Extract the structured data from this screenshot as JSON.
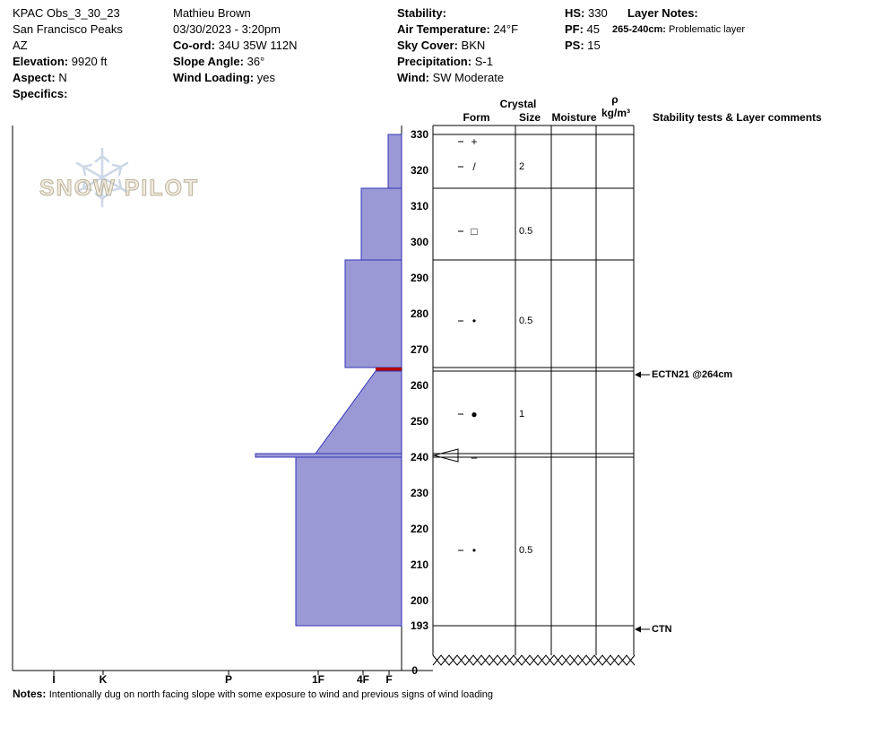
{
  "header": {
    "pit": {
      "title": "KPAC Obs_3_30_23",
      "location": "San Francisco Peaks",
      "region": "AZ",
      "elevation_label": "Elevation:",
      "elevation_value": "9920 ft",
      "aspect_label": "Aspect:",
      "aspect_value": "N",
      "specifics_label": "Specifics:"
    },
    "observer": {
      "name": "Mathieu Brown",
      "datetime": "03/30/2023 - 3:20pm",
      "coord_label": "Co-ord:",
      "coord_value": "34U 35W 112N",
      "slope_angle_label": "Slope Angle:",
      "slope_angle_value": "36°",
      "wind_loading_label": "Wind Loading:",
      "wind_loading_value": "yes"
    },
    "conditions": {
      "stability_label": "Stability:",
      "air_temp_label": "Air Temperature:",
      "air_temp_value": "24°F",
      "sky_cover_label": "Sky Cover:",
      "sky_cover_value": "BKN",
      "precipitation_label": "Precipitation:",
      "precipitation_value": "S-1",
      "wind_label": "Wind:",
      "wind_value": "SW Moderate"
    },
    "snow_depths": {
      "hs_label": "HS:",
      "hs_value": "330",
      "pf_label": "PF:",
      "pf_value": "45",
      "ps_label": "PS:",
      "ps_value": "15"
    },
    "layer_notes": {
      "title": "Layer Notes:",
      "items": [
        {
          "range": "265-240cm:",
          "note": "Problematic layer"
        }
      ]
    }
  },
  "chart": {
    "watermark": "SNOW PILOT",
    "headers": {
      "crystal": "Crystal",
      "form": "Form",
      "size": "Size",
      "moisture": "Moisture",
      "rho": "ρ",
      "rho_unit": "kg/m³",
      "stability": "Stability tests & Layer comments"
    },
    "surface_zero": "0"
  },
  "chart_data": {
    "type": "snow-profile",
    "depth_unit": "cm",
    "total_height_cm": 330,
    "visible_bottom_cm": 193,
    "depth_ticks": [
      330,
      320,
      310,
      300,
      290,
      280,
      270,
      260,
      250,
      240,
      230,
      220,
      210,
      200,
      193
    ],
    "hardness_ticks": [
      "I",
      "K",
      "P",
      "1F",
      "4F",
      "F"
    ],
    "layers": [
      {
        "top_cm": 330,
        "bottom_cm": 315,
        "hardness": "F"
      },
      {
        "top_cm": 315,
        "bottom_cm": 295,
        "hardness": "4F"
      },
      {
        "top_cm": 295,
        "bottom_cm": 265,
        "hardness": "4F+"
      },
      {
        "top_cm": 265,
        "bottom_cm": 264,
        "hardness": "F-",
        "flag": "problematic layer (red)"
      },
      {
        "top_cm": 264,
        "bottom_cm": 241,
        "hardness_top": "F-",
        "hardness_bottom": "1F"
      },
      {
        "top_cm": 241,
        "bottom_cm": 240,
        "hardness": "P+"
      },
      {
        "top_cm": 240,
        "bottom_cm": 193,
        "hardness": "1F+"
      }
    ],
    "grains": [
      {
        "depth_cm": 328,
        "form": "+",
        "size_mm": ""
      },
      {
        "depth_cm": 321,
        "form": "/",
        "size_mm": "2"
      },
      {
        "depth_cm": 303,
        "form": "□",
        "size_mm": "0.5"
      },
      {
        "depth_cm": 278,
        "form": "•",
        "size_mm": "0.5"
      },
      {
        "depth_cm": 252,
        "form": "●",
        "size_mm": "1"
      },
      {
        "depth_cm": 240,
        "form": "–",
        "size_mm": ""
      },
      {
        "depth_cm": 214,
        "form": "•",
        "size_mm": "0.5"
      }
    ],
    "stability_tests": [
      {
        "depth_cm": 264,
        "label": "ECTN21 @264cm"
      },
      {
        "depth_cm": 193,
        "label": "CTN"
      }
    ]
  },
  "notes": {
    "label": "Notes:",
    "text": "Intentionally dug on north facing slope with some exposure to wind and previous signs of wind loading"
  },
  "colors": {
    "bar_fill": "#9a99d6",
    "bar_edge": "#3434b8",
    "flag_red": "#b40000",
    "watermark_text": "#c9bfa4",
    "watermark_snowflake": "#b9c8de"
  }
}
